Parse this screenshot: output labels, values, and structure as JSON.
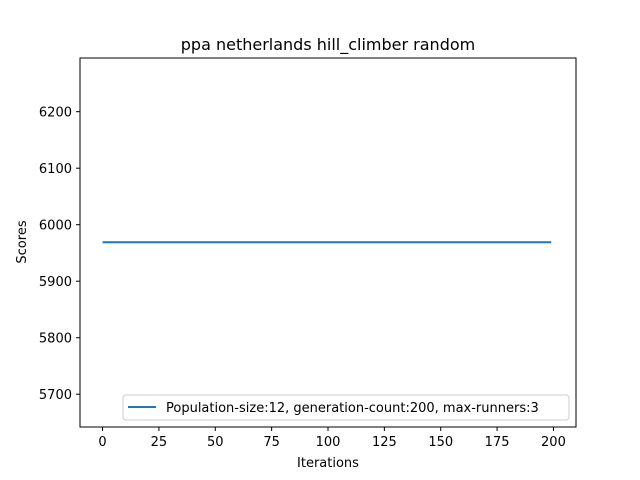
{
  "chart_data": {
    "type": "line",
    "title": "ppa netherlands hill_climber random",
    "xlabel": "Iterations",
    "ylabel": "Scores",
    "xlim": [
      -10,
      210
    ],
    "ylim": [
      5642,
      6295
    ],
    "xticks": [
      0,
      25,
      50,
      75,
      100,
      125,
      150,
      175,
      200
    ],
    "yticks": [
      5700,
      5800,
      5900,
      6000,
      6100,
      6200
    ],
    "grid": false,
    "legend_position": "lower right",
    "series": [
      {
        "name": "Population-size:12, generation-count:200, max-runners:3",
        "color": "#1f77b4",
        "x": [
          0,
          199
        ],
        "y": [
          5969,
          5969
        ]
      }
    ]
  }
}
